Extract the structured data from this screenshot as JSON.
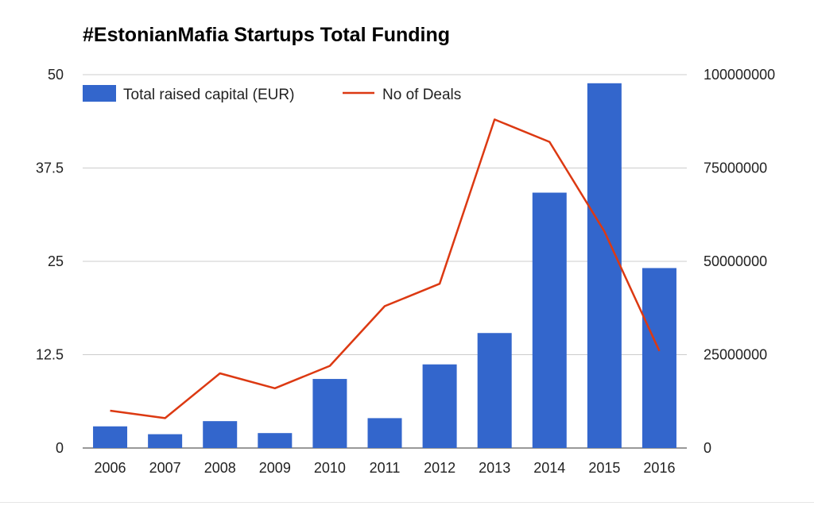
{
  "chart_data": {
    "type": "bar",
    "title": "#EstonianMafia Startups Total Funding",
    "categories": [
      "2006",
      "2007",
      "2008",
      "2009",
      "2010",
      "2011",
      "2012",
      "2013",
      "2014",
      "2015",
      "2016"
    ],
    "series": [
      {
        "name": "Total raised capital (EUR)",
        "type": "bar",
        "axis": "right",
        "color": "#3366cc",
        "values": [
          5800000,
          3700000,
          7200000,
          4000000,
          18500000,
          8000000,
          22400000,
          30800000,
          68400000,
          97700000,
          48200000
        ]
      },
      {
        "name": "No of Deals",
        "type": "line",
        "axis": "left",
        "color": "#dc3912",
        "values": [
          5,
          4,
          10,
          8,
          11,
          19,
          22,
          44,
          41,
          29,
          13
        ]
      }
    ],
    "y_left": {
      "ylim": [
        0,
        50
      ],
      "ticks": [
        "0",
        "12.5",
        "25",
        "37.5",
        "50"
      ]
    },
    "y_right": {
      "ylim": [
        0,
        100000000
      ],
      "ticks": [
        "0",
        "25000000",
        "50000000",
        "75000000",
        "100000000"
      ]
    },
    "grid": true,
    "legend_position": "top-left"
  }
}
